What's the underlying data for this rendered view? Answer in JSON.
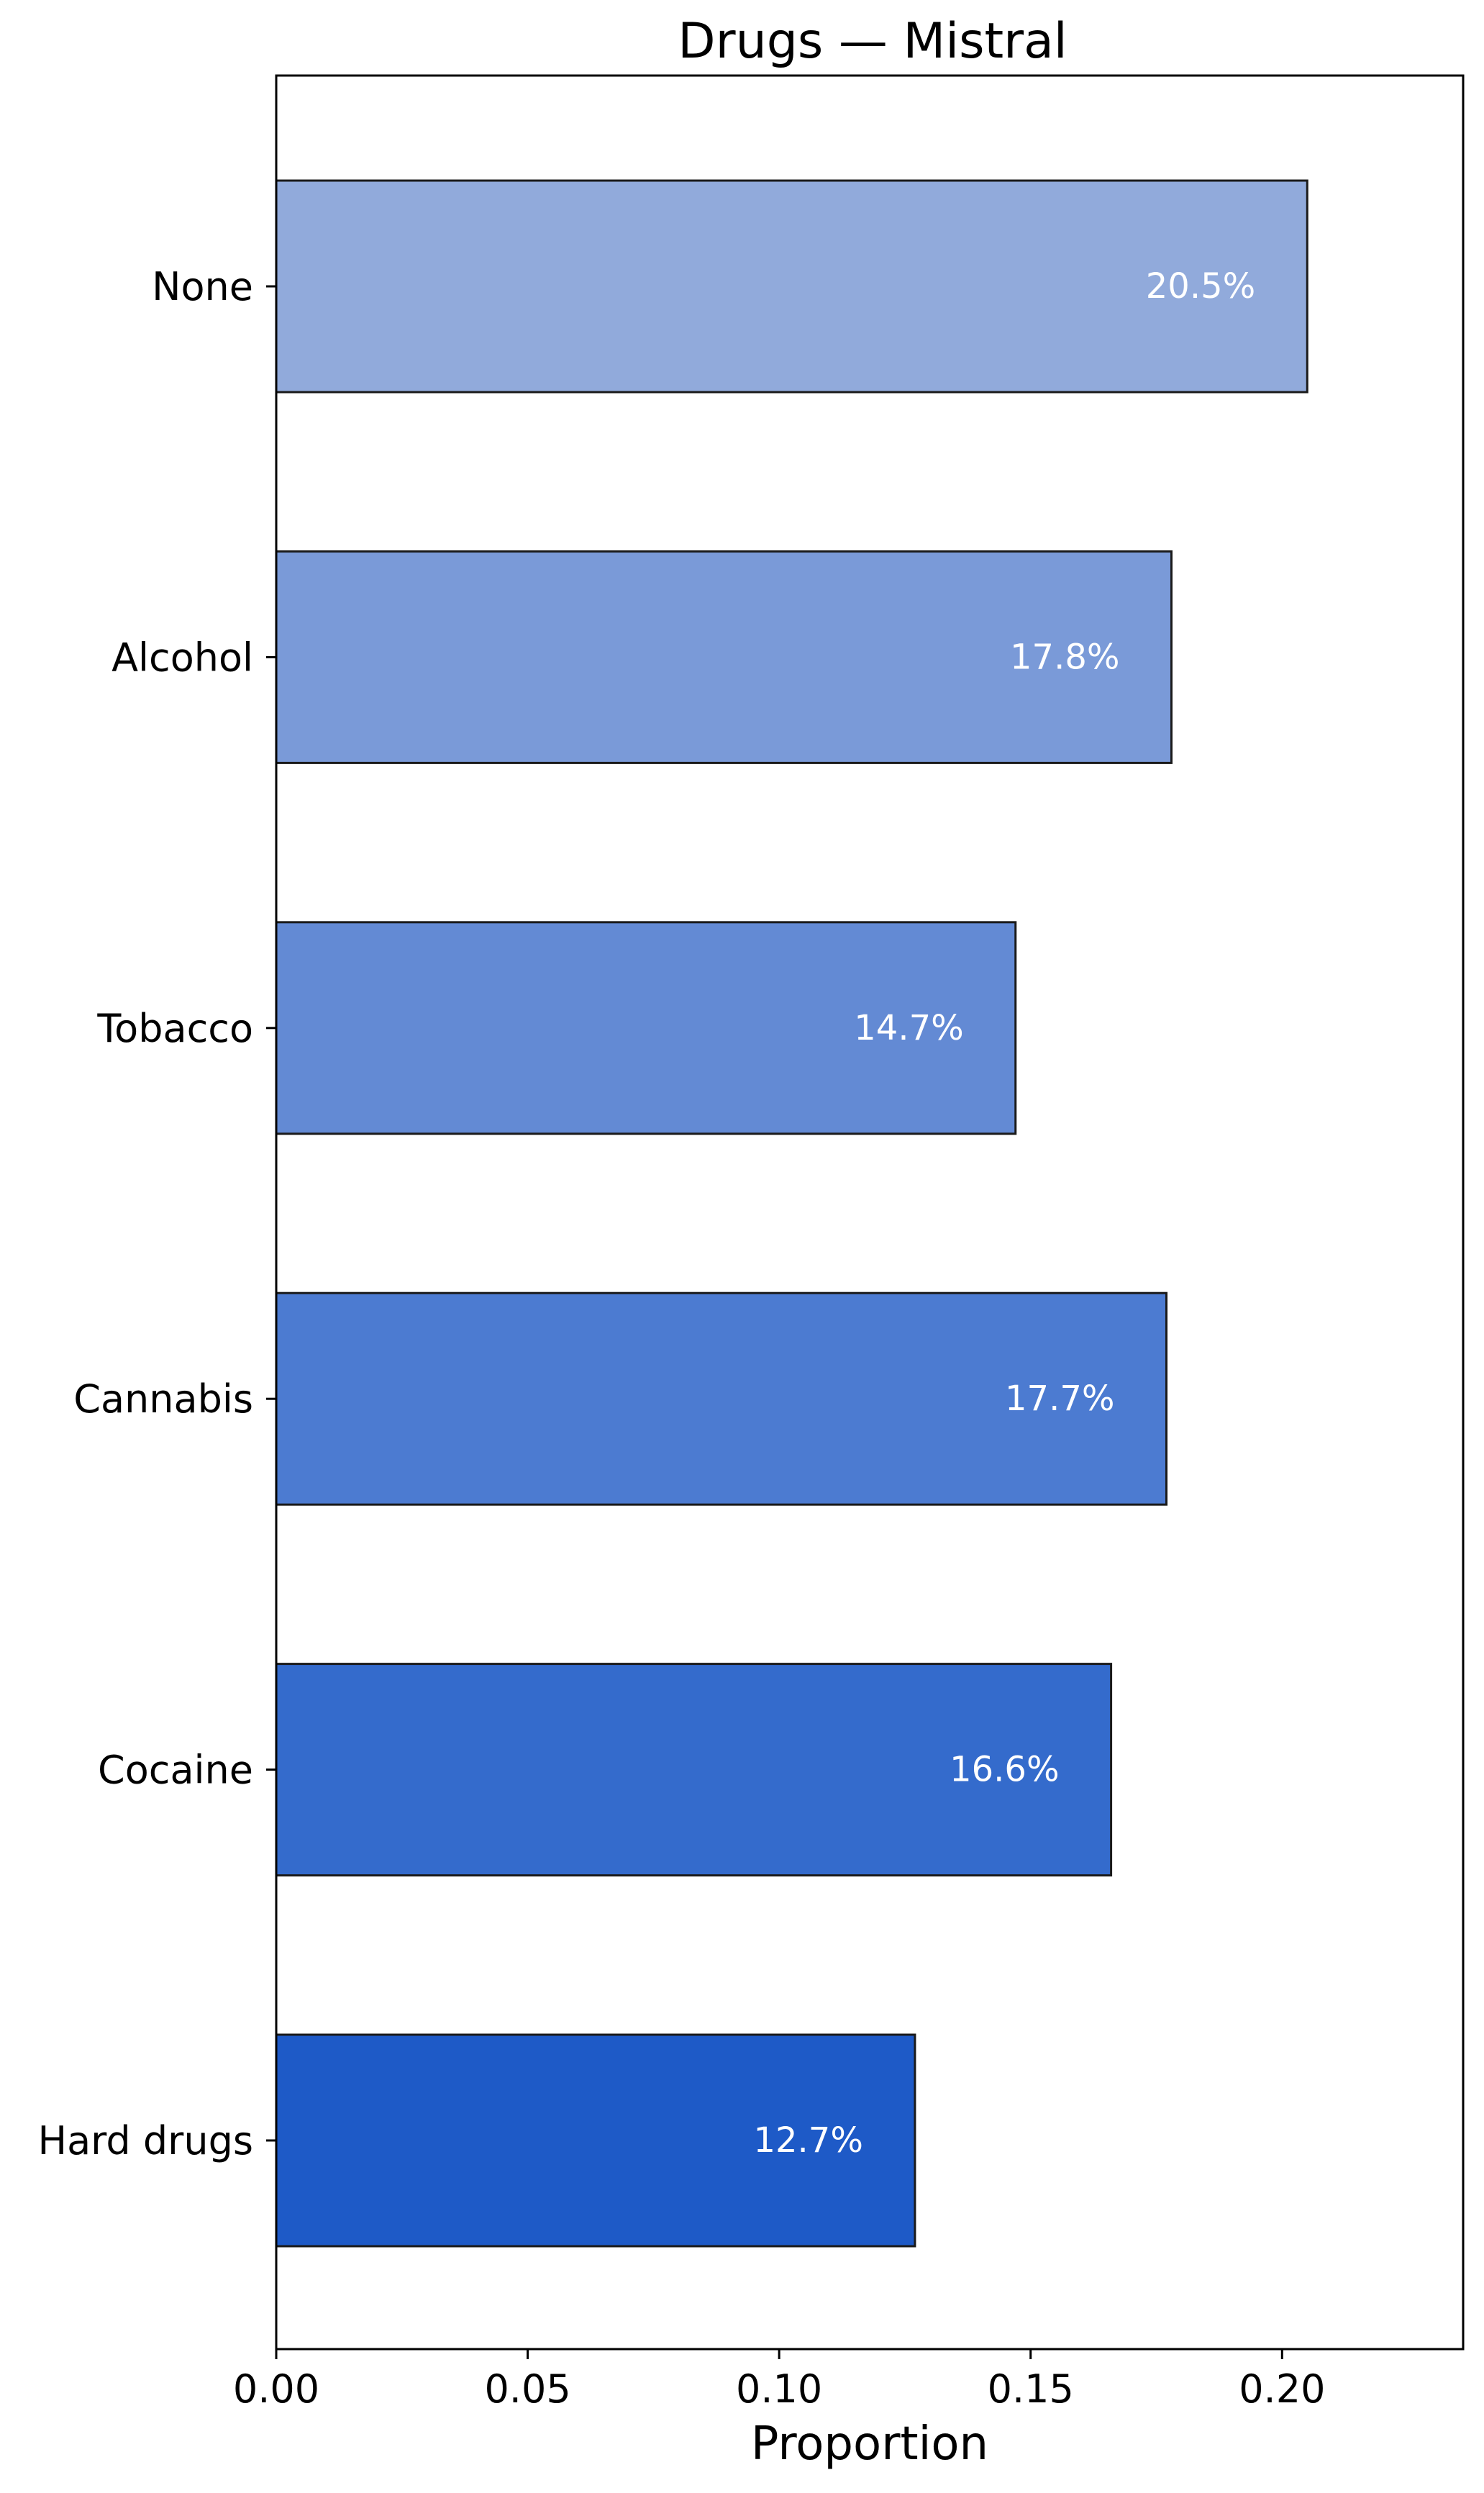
{
  "chart_data": {
    "type": "bar",
    "orientation": "horizontal",
    "title": "Drugs — Mistral",
    "xlabel": "Proportion",
    "ylabel": "",
    "categories": [
      "None",
      "Alcohol",
      "Tobacco",
      "Cannabis",
      "Cocaine",
      "Hard drugs"
    ],
    "values": [
      0.205,
      0.178,
      0.147,
      0.177,
      0.166,
      0.127
    ],
    "data_labels": [
      "20.5%",
      "17.8%",
      "14.7%",
      "17.7%",
      "16.6%",
      "12.7%"
    ],
    "bar_colors": [
      "#91aadb",
      "#7a9ad8",
      "#638ad4",
      "#4c7bd1",
      "#346bcc",
      "#1e5ac7"
    ],
    "data_label_color": "#ffffff",
    "xlim": [
      0,
      0.236
    ],
    "xticks": [
      0.0,
      0.05,
      0.1,
      0.15,
      0.2
    ],
    "xtick_labels": [
      "0.00",
      "0.05",
      "0.10",
      "0.15",
      "0.20"
    ],
    "grid": false,
    "legend": "none"
  }
}
